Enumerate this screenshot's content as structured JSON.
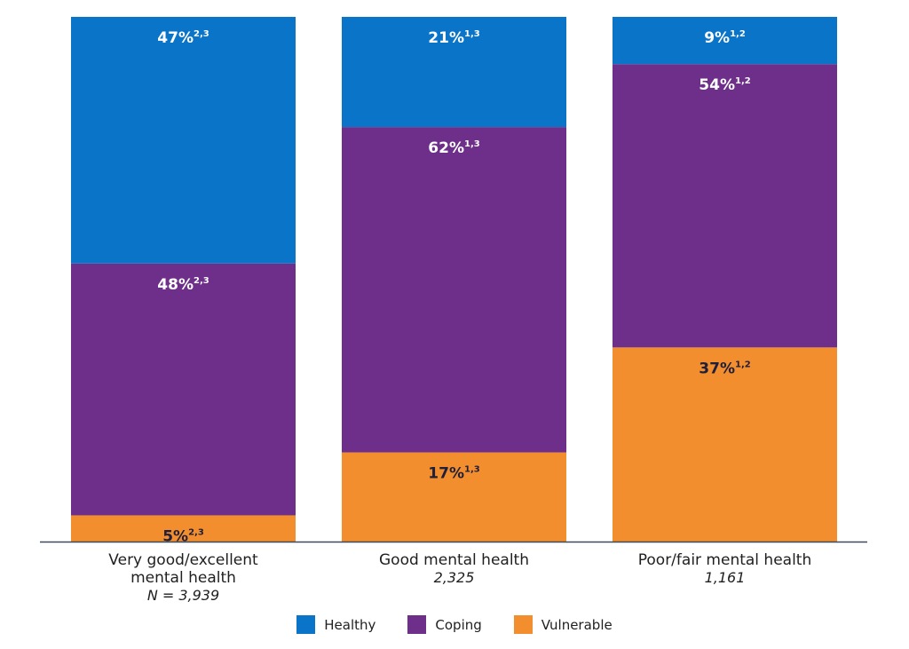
{
  "chart_data": {
    "type": "bar",
    "stacked": true,
    "normalized": true,
    "categories": [
      {
        "lines": [
          "Very good/excellent",
          "mental health"
        ],
        "n": "N = 3,939"
      },
      {
        "lines": [
          "Good mental health"
        ],
        "n": "2,325"
      },
      {
        "lines": [
          "Poor/fair mental health"
        ],
        "n": "1,161"
      }
    ],
    "series": [
      {
        "name": "Vulnerable",
        "color": "#f28e2e",
        "label_color": "#1f1f3a",
        "values": [
          5,
          17,
          37
        ],
        "labels": [
          "5%",
          "17%",
          "37%"
        ],
        "superscripts": [
          "2,3",
          "1,3",
          "1,2"
        ]
      },
      {
        "name": "Coping",
        "color": "#6e2f8a",
        "label_color": "#ffffff",
        "values": [
          48,
          62,
          54
        ],
        "labels": [
          "48%",
          "62%",
          "54%"
        ],
        "superscripts": [
          "2,3",
          "1,3",
          "1,2"
        ]
      },
      {
        "name": "Healthy",
        "color": "#0a74c9",
        "label_color": "#ffffff",
        "values": [
          47,
          21,
          9
        ],
        "labels": [
          "47%",
          "21%",
          "9%"
        ],
        "superscripts": [
          "2,3",
          "1,3",
          "1,2"
        ]
      }
    ],
    "ylim": [
      0,
      100
    ],
    "legend_position": "bottom",
    "grid": false
  },
  "legend": [
    {
      "label": "Healthy",
      "color": "#0a74c9"
    },
    {
      "label": "Coping",
      "color": "#6e2f8a"
    },
    {
      "label": "Vulnerable",
      "color": "#f28e2e"
    }
  ]
}
